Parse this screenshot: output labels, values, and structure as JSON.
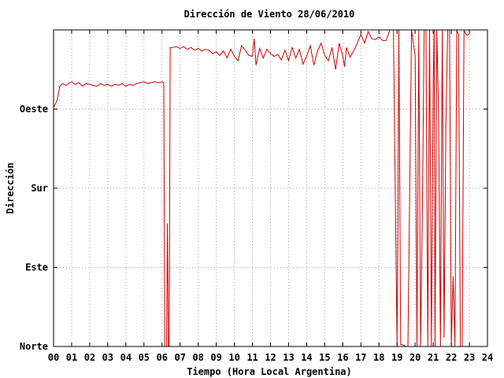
{
  "chart_data": {
    "type": "line",
    "title": "Dirección de Viento 28/06/2010",
    "xlabel": "Tiempo (Hora Local Argentina)",
    "ylabel": "Dirección",
    "xlim": [
      0,
      24
    ],
    "ylim": [
      0,
      360
    ],
    "grid": true,
    "x_ticks": [
      "00",
      "01",
      "02",
      "03",
      "04",
      "05",
      "06",
      "07",
      "08",
      "09",
      "10",
      "11",
      "12",
      "13",
      "14",
      "15",
      "16",
      "17",
      "18",
      "19",
      "20",
      "21",
      "22",
      "23",
      "24"
    ],
    "y_ticks": [
      {
        "value": 0,
        "label": "Norte"
      },
      {
        "value": 90,
        "label": "Este"
      },
      {
        "value": 180,
        "label": "Sur"
      },
      {
        "value": 270,
        "label": "Oeste"
      }
    ],
    "colors": {
      "series": "#cc0000"
    },
    "series": [
      {
        "x": [
          0.0,
          0.1,
          0.2,
          0.35,
          0.5,
          0.7,
          0.9,
          1.0,
          1.2,
          1.4,
          1.6,
          1.8,
          2.0,
          2.2,
          2.4,
          2.6,
          2.8,
          3.0,
          3.2,
          3.4,
          3.6,
          3.8,
          4.0,
          4.2,
          4.4,
          4.6,
          4.8,
          5.0,
          5.2,
          5.4,
          5.6,
          5.8,
          6.0,
          6.1,
          6.15,
          6.25,
          6.3,
          6.35,
          6.4,
          6.45,
          6.6,
          6.8,
          7.0,
          7.2,
          7.4,
          7.6,
          7.8,
          8.0,
          8.2,
          8.4,
          8.6,
          8.8,
          9.0,
          9.2,
          9.4,
          9.6,
          9.8,
          10.0,
          10.2,
          10.4,
          10.6,
          10.8,
          11.0,
          11.1,
          11.2,
          11.4,
          11.6,
          11.8,
          12.0,
          12.2,
          12.4,
          12.6,
          12.8,
          13.0,
          13.2,
          13.4,
          13.6,
          13.8,
          14.0,
          14.2,
          14.4,
          14.6,
          14.8,
          15.0,
          15.2,
          15.4,
          15.6,
          15.8,
          16.0,
          16.1,
          16.2,
          16.4,
          16.6,
          16.8,
          17.0,
          17.2,
          17.4,
          17.6,
          17.8,
          18.0,
          18.2,
          18.4,
          18.6,
          18.8,
          19.0,
          19.05,
          19.1,
          19.2,
          19.3,
          19.4,
          19.5,
          19.6,
          19.8,
          20.0,
          20.1,
          20.2,
          20.3,
          20.4,
          20.5,
          20.6,
          20.7,
          20.8,
          20.9,
          21.0,
          21.05,
          21.1,
          21.2,
          21.3,
          21.4,
          21.5,
          21.6,
          21.7,
          21.8,
          21.9,
          22.0,
          22.1,
          22.2,
          22.3,
          22.4,
          22.5,
          22.6,
          22.7,
          22.8,
          22.9,
          23.0
        ],
        "values": [
          272,
          276,
          280,
          296,
          299,
          297,
          300,
          301,
          298,
          300,
          296,
          299,
          298,
          297,
          296,
          299,
          297,
          298,
          296,
          298,
          297,
          299,
          296,
          298,
          297,
          299,
          300,
          301,
          299,
          300,
          301,
          300,
          301,
          300,
          0,
          0,
          140,
          0,
          0,
          340,
          340,
          341,
          339,
          341,
          338,
          340,
          337,
          339,
          336,
          338,
          337,
          333,
          335,
          331,
          336,
          328,
          338,
          330,
          325,
          342,
          337,
          331,
          330,
          350,
          320,
          339,
          328,
          338,
          333,
          330,
          332,
          326,
          337,
          325,
          340,
          328,
          338,
          321,
          330,
          342,
          320,
          336,
          345,
          331,
          325,
          340,
          315,
          345,
          330,
          318,
          340,
          329,
          336,
          345,
          355,
          345,
          358,
          350,
          349,
          352,
          348,
          348,
          360,
          360,
          0,
          150,
          360,
          2,
          2,
          1,
          0,
          0,
          360,
          330,
          0,
          360,
          0,
          150,
          360,
          360,
          0,
          360,
          0,
          300,
          360,
          0,
          360,
          260,
          0,
          360,
          10,
          250,
          360,
          360,
          0,
          80,
          0,
          360,
          355,
          0,
          0,
          360,
          355,
          354,
          355
        ]
      }
    ]
  }
}
